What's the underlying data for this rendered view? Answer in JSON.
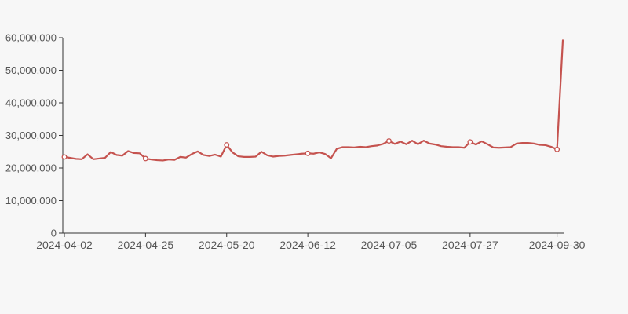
{
  "chart_data": {
    "type": "line",
    "title": "",
    "x_tick_labels": [
      "2024-04-02",
      "2024-04-25",
      "2024-05-20",
      "2024-06-12",
      "2024-07-05",
      "2024-07-27",
      "2024-09-30"
    ],
    "y_ticks": [
      0,
      10000000,
      20000000,
      30000000,
      40000000,
      50000000,
      60000000
    ],
    "ylim": [
      0,
      60000000
    ],
    "grid": false,
    "legend_position": "none",
    "colors": {
      "background": "#f7f7f7",
      "axis": "#333333",
      "tick_label": "#555555",
      "line": "#c5534f",
      "marker_fill": "#ffffff"
    },
    "series": [
      {
        "name": "",
        "color": "#c5534f",
        "marker": "open-circle",
        "marker_indices": [
          0,
          14,
          28,
          42,
          56,
          70,
          85
        ],
        "values": [
          23400000,
          23100000,
          22800000,
          22700000,
          24200000,
          22700000,
          22900000,
          23100000,
          24900000,
          24000000,
          23800000,
          25200000,
          24600000,
          24500000,
          22900000,
          22600000,
          22400000,
          22300000,
          22600000,
          22500000,
          23400000,
          23200000,
          24300000,
          25100000,
          24000000,
          23700000,
          24100000,
          23500000,
          27100000,
          24800000,
          23600000,
          23400000,
          23400000,
          23500000,
          25000000,
          23900000,
          23500000,
          23700000,
          23800000,
          24000000,
          24200000,
          24400000,
          24500000,
          24400000,
          24800000,
          24300000,
          23000000,
          25900000,
          26400000,
          26400000,
          26300000,
          26500000,
          26400000,
          26700000,
          26900000,
          27400000,
          28300000,
          27400000,
          28100000,
          27300000,
          28400000,
          27300000,
          28400000,
          27500000,
          27200000,
          26700000,
          26500000,
          26400000,
          26400000,
          26200000,
          28000000,
          27200000,
          28200000,
          27300000,
          26300000,
          26200000,
          26300000,
          26400000,
          27500000,
          27700000,
          27700000,
          27500000,
          27100000,
          27000000,
          26500000,
          25700000,
          59200000
        ]
      }
    ]
  }
}
